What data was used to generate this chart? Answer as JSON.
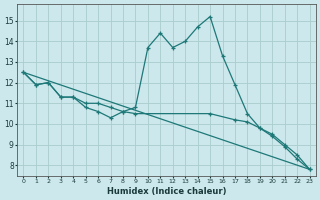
{
  "xlabel": "Humidex (Indice chaleur)",
  "bg_color": "#cce8ec",
  "grid_color": "#aacccc",
  "line_color": "#1e7878",
  "xlim": [
    -0.5,
    23.5
  ],
  "ylim": [
    7.5,
    15.8
  ],
  "yticks": [
    8,
    9,
    10,
    11,
    12,
    13,
    14,
    15
  ],
  "xticks": [
    0,
    1,
    2,
    3,
    4,
    5,
    6,
    7,
    8,
    9,
    10,
    11,
    12,
    13,
    14,
    15,
    16,
    17,
    18,
    19,
    20,
    21,
    22,
    23
  ],
  "line1_x": [
    0,
    1,
    2,
    3,
    4,
    5,
    6,
    7,
    8,
    9,
    10,
    11,
    12,
    13,
    14,
    15,
    16,
    17,
    18,
    19,
    20,
    21,
    22,
    23
  ],
  "line1_y": [
    12.5,
    11.9,
    12.0,
    11.3,
    11.3,
    10.8,
    10.6,
    10.3,
    10.6,
    10.8,
    13.7,
    14.4,
    13.7,
    14.0,
    14.7,
    15.2,
    13.3,
    11.9,
    10.5,
    9.8,
    9.4,
    8.9,
    8.3,
    7.8
  ],
  "line2_x": [
    0,
    1,
    2,
    3,
    4,
    5,
    6,
    7,
    8,
    9,
    15,
    17,
    18,
    19,
    20,
    21,
    22,
    23
  ],
  "line2_y": [
    12.5,
    11.9,
    12.0,
    11.3,
    11.3,
    11.0,
    11.0,
    10.8,
    10.6,
    10.5,
    10.5,
    10.2,
    10.1,
    9.8,
    9.5,
    9.0,
    8.5,
    7.8
  ],
  "line3_x": [
    0,
    23
  ],
  "line3_y": [
    12.5,
    7.8
  ]
}
